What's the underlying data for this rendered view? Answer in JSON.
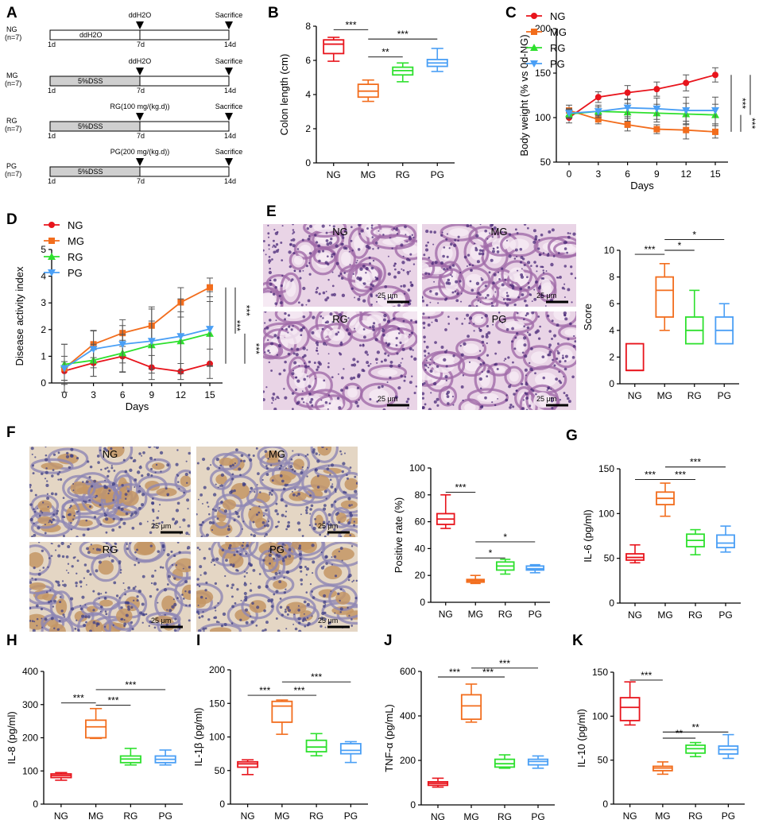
{
  "figure": {
    "panel_letters": [
      "A",
      "B",
      "C",
      "D",
      "E",
      "F",
      "G",
      "H",
      "I",
      "J",
      "K"
    ]
  },
  "schematic": {
    "rows": [
      {
        "group": "NG",
        "n": "(n=7)",
        "top_label": "ddH2O",
        "bar_label": "ddH2O",
        "start": "1d",
        "mid": "7d",
        "end": "14d",
        "end_label": "Sacrifice",
        "dss": false
      },
      {
        "group": "MG",
        "n": "(n=7)",
        "top_label": "ddH2O",
        "bar_label": "5%DSS",
        "start": "1d",
        "mid": "7d",
        "end": "14d",
        "end_label": "Sacrifice",
        "dss": true
      },
      {
        "group": "RG",
        "n": "(n=7)",
        "top_label": "RG(100 mg/(kg.d))",
        "bar_label": "5%DSS",
        "start": "1d",
        "mid": "7d",
        "end": "14d",
        "end_label": "Sacrifice",
        "dss": true
      },
      {
        "group": "PG",
        "n": "(n=7)",
        "top_label": "PG(200 mg/(kg.d))",
        "bar_label": "5%DSS",
        "start": "1d",
        "mid": "7d",
        "end": "14d",
        "end_label": "Sacrifice",
        "dss": true
      }
    ]
  },
  "images": {
    "E": {
      "labels": [
        "NG",
        "MG",
        "RG",
        "PG"
      ],
      "scale": "25 μm",
      "tone": "he"
    },
    "F": {
      "labels": [
        "NG",
        "MG",
        "RG",
        "PG"
      ],
      "scale": "25 μm",
      "tone": "ihc"
    }
  },
  "colors": {
    "NG": "#e8141c",
    "MG": "#f26d1d",
    "RG": "#2ee02e",
    "PG": "#4a9ff5"
  },
  "chart_data": [
    {
      "panel": "B",
      "type": "box",
      "ylabel": "Colon length (cm)",
      "ylim": [
        0,
        8
      ],
      "yticks": [
        0,
        2,
        4,
        6,
        8
      ],
      "categories": [
        "NG",
        "MG",
        "RG",
        "PG"
      ],
      "boxes": [
        {
          "name": "NG",
          "min": 5.95,
          "q1": 6.4,
          "median": 6.95,
          "q3": 7.2,
          "max": 7.35
        },
        {
          "name": "MG",
          "min": 3.6,
          "q1": 3.85,
          "median": 4.2,
          "q3": 4.6,
          "max": 4.85
        },
        {
          "name": "RG",
          "min": 4.75,
          "q1": 5.15,
          "median": 5.4,
          "q3": 5.6,
          "max": 5.85
        },
        {
          "name": "PG",
          "min": 5.35,
          "q1": 5.65,
          "median": 5.85,
          "q3": 6.05,
          "max": 6.7
        }
      ],
      "brackets": [
        {
          "from": 0,
          "to": 1,
          "level": 7.8,
          "text": "***"
        },
        {
          "from": 1,
          "to": 3,
          "level": 7.25,
          "text": "***"
        },
        {
          "from": 1,
          "to": 2,
          "level": 6.2,
          "text": "**"
        }
      ]
    },
    {
      "panel": "C",
      "type": "line",
      "xlabel": "Days",
      "ylabel": "Body weight (% vs 0d-NG)",
      "x": [
        0,
        3,
        6,
        9,
        12,
        15
      ],
      "ylim": [
        50,
        200
      ],
      "yticks": [
        50,
        100,
        150,
        200
      ],
      "series": [
        {
          "name": "NG",
          "marker": "circle",
          "values": [
            100,
            123,
            128,
            132,
            139,
            148
          ],
          "err": [
            6,
            6,
            8,
            8,
            9,
            8
          ]
        },
        {
          "name": "MG",
          "marker": "square",
          "values": [
            108,
            98,
            92,
            87,
            86,
            84
          ],
          "err": [
            6,
            5,
            7,
            5,
            10,
            7
          ]
        },
        {
          "name": "RG",
          "marker": "triangle",
          "values": [
            104,
            107,
            106,
            105,
            104,
            103
          ],
          "err": [
            5,
            5,
            10,
            10,
            12,
            12
          ]
        },
        {
          "name": "PG",
          "marker": "tridown",
          "values": [
            105,
            107,
            111,
            110,
            108,
            108
          ],
          "err": [
            5,
            7,
            10,
            12,
            15,
            15
          ]
        }
      ],
      "sig": [
        "***",
        "***",
        "***"
      ]
    },
    {
      "panel": "D",
      "type": "line",
      "xlabel": "Days",
      "ylabel": "Disease activity index",
      "x": [
        0,
        3,
        6,
        9,
        12,
        15
      ],
      "ylim": [
        0,
        5
      ],
      "yticks": [
        0,
        1,
        2,
        3,
        4,
        5
      ],
      "series": [
        {
          "name": "NG",
          "marker": "circle",
          "values": [
            0.45,
            0.75,
            1.0,
            0.58,
            0.43,
            0.72
          ],
          "err": [
            0.35,
            0.5,
            0.6,
            0.45,
            0.3,
            0.55
          ]
        },
        {
          "name": "MG",
          "marker": "square",
          "values": [
            0.55,
            1.45,
            1.87,
            2.15,
            3.02,
            3.58
          ],
          "err": [
            0.45,
            0.5,
            0.5,
            0.7,
            0.55,
            0.35
          ]
        },
        {
          "name": "RG",
          "marker": "triangle",
          "values": [
            0.7,
            0.85,
            1.12,
            1.42,
            1.57,
            1.85
          ],
          "err": [
            0.75,
            0.6,
            0.7,
            0.9,
            1.1,
            1.2
          ]
        },
        {
          "name": "PG",
          "marker": "tridown",
          "values": [
            0.55,
            1.27,
            1.45,
            1.57,
            1.75,
            2.02
          ],
          "err": [
            0.9,
            0.7,
            0.7,
            1.2,
            1.4,
            1.4
          ]
        }
      ],
      "sig": [
        "***",
        "***",
        "***"
      ]
    },
    {
      "panel": "E",
      "type": "box",
      "ylabel": "Score",
      "ylim": [
        0,
        10
      ],
      "yticks": [
        0,
        2,
        4,
        6,
        8,
        10
      ],
      "categories": [
        "NG",
        "MG",
        "RG",
        "PG"
      ],
      "boxes": [
        {
          "name": "NG",
          "min": 1,
          "q1": 1,
          "median": 1,
          "q3": 3,
          "max": 3
        },
        {
          "name": "MG",
          "min": 4,
          "q1": 5,
          "median": 7,
          "q3": 8,
          "max": 9
        },
        {
          "name": "RG",
          "min": 3,
          "q1": 3,
          "median": 4,
          "q3": 5,
          "max": 7
        },
        {
          "name": "PG",
          "min": 3,
          "q1": 3,
          "median": 4,
          "q3": 5,
          "max": 6
        }
      ],
      "brackets": [
        {
          "from": 0,
          "to": 1,
          "level": 9.7,
          "text": "***"
        },
        {
          "from": 1,
          "to": 3,
          "level": 10.8,
          "text": "*"
        },
        {
          "from": 1,
          "to": 2,
          "level": 10.0,
          "text": "*"
        }
      ]
    },
    {
      "panel": "F",
      "type": "box",
      "ylabel": "Positive rate (%)",
      "ylim": [
        0,
        100
      ],
      "yticks": [
        0,
        20,
        40,
        60,
        80,
        100
      ],
      "categories": [
        "NG",
        "MG",
        "RG",
        "PG"
      ],
      "boxes": [
        {
          "name": "NG",
          "min": 55,
          "q1": 58,
          "median": 62,
          "q3": 66,
          "max": 80
        },
        {
          "name": "MG",
          "min": 14,
          "q1": 15,
          "median": 16,
          "q3": 17,
          "max": 20
        },
        {
          "name": "RG",
          "min": 21,
          "q1": 24,
          "median": 27,
          "q3": 30,
          "max": 32
        },
        {
          "name": "PG",
          "min": 22,
          "q1": 24,
          "median": 25,
          "q3": 27,
          "max": 28
        }
      ],
      "brackets": [
        {
          "from": 0,
          "to": 1,
          "level": 82,
          "text": "***"
        },
        {
          "from": 1,
          "to": 3,
          "level": 45,
          "text": "*"
        },
        {
          "from": 1,
          "to": 2,
          "level": 33,
          "text": "*"
        }
      ]
    },
    {
      "panel": "G",
      "type": "box",
      "ylabel": "IL-6 (pg/ml)",
      "ylim": [
        0,
        150
      ],
      "yticks": [
        0,
        50,
        100,
        150
      ],
      "categories": [
        "NG",
        "MG",
        "RG",
        "PG"
      ],
      "boxes": [
        {
          "name": "NG",
          "min": 45,
          "q1": 48,
          "median": 51,
          "q3": 55,
          "max": 65
        },
        {
          "name": "MG",
          "min": 97,
          "q1": 110,
          "median": 117,
          "q3": 124,
          "max": 134
        },
        {
          "name": "RG",
          "min": 54,
          "q1": 63,
          "median": 70,
          "q3": 77,
          "max": 82
        },
        {
          "name": "PG",
          "min": 57,
          "q1": 62,
          "median": 67,
          "q3": 76,
          "max": 86
        }
      ],
      "brackets": [
        {
          "from": 0,
          "to": 1,
          "level": 138,
          "text": "***"
        },
        {
          "from": 1,
          "to": 3,
          "level": 152,
          "text": "***"
        },
        {
          "from": 1,
          "to": 2,
          "level": 138,
          "text": "***"
        }
      ]
    },
    {
      "panel": "H",
      "type": "box",
      "ylabel": "IL-8 (pg/ml)",
      "ylim": [
        0,
        400
      ],
      "yticks": [
        0,
        100,
        200,
        300,
        400
      ],
      "categories": [
        "NG",
        "MG",
        "RG",
        "PG"
      ],
      "boxes": [
        {
          "name": "NG",
          "min": 72,
          "q1": 80,
          "median": 86,
          "q3": 91,
          "max": 95
        },
        {
          "name": "MG",
          "min": 198,
          "q1": 200,
          "median": 233,
          "q3": 253,
          "max": 288
        },
        {
          "name": "RG",
          "min": 118,
          "q1": 125,
          "median": 136,
          "q3": 145,
          "max": 168
        },
        {
          "name": "PG",
          "min": 118,
          "q1": 125,
          "median": 135,
          "q3": 145,
          "max": 163
        }
      ],
      "brackets": [
        {
          "from": 0,
          "to": 1,
          "level": 305,
          "text": "***"
        },
        {
          "from": 1,
          "to": 3,
          "level": 345,
          "text": "***"
        },
        {
          "from": 1,
          "to": 2,
          "level": 298,
          "text": "***"
        }
      ]
    },
    {
      "panel": "I",
      "type": "box",
      "ylabel": "IL-1β (pg/ml)",
      "ylim": [
        0,
        200
      ],
      "yticks": [
        0,
        50,
        100,
        150,
        200
      ],
      "categories": [
        "NG",
        "MG",
        "RG",
        "PG"
      ],
      "boxes": [
        {
          "name": "NG",
          "min": 44,
          "q1": 55,
          "median": 60,
          "q3": 63,
          "max": 66
        },
        {
          "name": "MG",
          "min": 104,
          "q1": 122,
          "median": 146,
          "q3": 153,
          "max": 155
        },
        {
          "name": "RG",
          "min": 72,
          "q1": 78,
          "median": 85,
          "q3": 95,
          "max": 105
        },
        {
          "name": "PG",
          "min": 62,
          "q1": 75,
          "median": 80,
          "q3": 90,
          "max": 93
        }
      ],
      "brackets": [
        {
          "from": 0,
          "to": 1,
          "level": 162,
          "text": "***"
        },
        {
          "from": 1,
          "to": 3,
          "level": 182,
          "text": "***"
        },
        {
          "from": 1,
          "to": 2,
          "level": 162,
          "text": "***"
        }
      ]
    },
    {
      "panel": "J",
      "type": "box",
      "ylabel": "TNF-α (pg/mL)",
      "ylim": [
        0,
        600
      ],
      "yticks": [
        0,
        200,
        400,
        600
      ],
      "categories": [
        "NG",
        "MG",
        "RG",
        "PG"
      ],
      "boxes": [
        {
          "name": "NG",
          "min": 80,
          "q1": 88,
          "median": 97,
          "q3": 104,
          "max": 120
        },
        {
          "name": "MG",
          "min": 372,
          "q1": 385,
          "median": 445,
          "q3": 495,
          "max": 543
        },
        {
          "name": "RG",
          "min": 165,
          "q1": 170,
          "median": 185,
          "q3": 205,
          "max": 225
        },
        {
          "name": "PG",
          "min": 165,
          "q1": 180,
          "median": 195,
          "q3": 205,
          "max": 220
        }
      ],
      "brackets": [
        {
          "from": 0,
          "to": 1,
          "level": 575,
          "text": "***"
        },
        {
          "from": 1,
          "to": 3,
          "level": 615,
          "text": "***"
        },
        {
          "from": 1,
          "to": 2,
          "level": 575,
          "text": "***"
        }
      ]
    },
    {
      "panel": "K",
      "type": "box",
      "ylabel": "IL-10 (pg/ml)",
      "ylim": [
        0,
        150
      ],
      "yticks": [
        0,
        50,
        100,
        150
      ],
      "categories": [
        "NG",
        "MG",
        "RG",
        "PG"
      ],
      "boxes": [
        {
          "name": "NG",
          "min": 90,
          "q1": 95,
          "median": 110,
          "q3": 121,
          "max": 139
        },
        {
          "name": "MG",
          "min": 34,
          "q1": 38,
          "median": 41,
          "q3": 43,
          "max": 48
        },
        {
          "name": "RG",
          "min": 54,
          "q1": 58,
          "median": 63,
          "q3": 67,
          "max": 70
        },
        {
          "name": "PG",
          "min": 52,
          "q1": 57,
          "median": 62,
          "q3": 66,
          "max": 79
        }
      ],
      "brackets": [
        {
          "from": 0,
          "to": 1,
          "level": 141,
          "text": "***"
        },
        {
          "from": 1,
          "to": 3,
          "level": 82,
          "text": "**"
        },
        {
          "from": 1,
          "to": 2,
          "level": 75,
          "text": "**"
        }
      ]
    }
  ]
}
